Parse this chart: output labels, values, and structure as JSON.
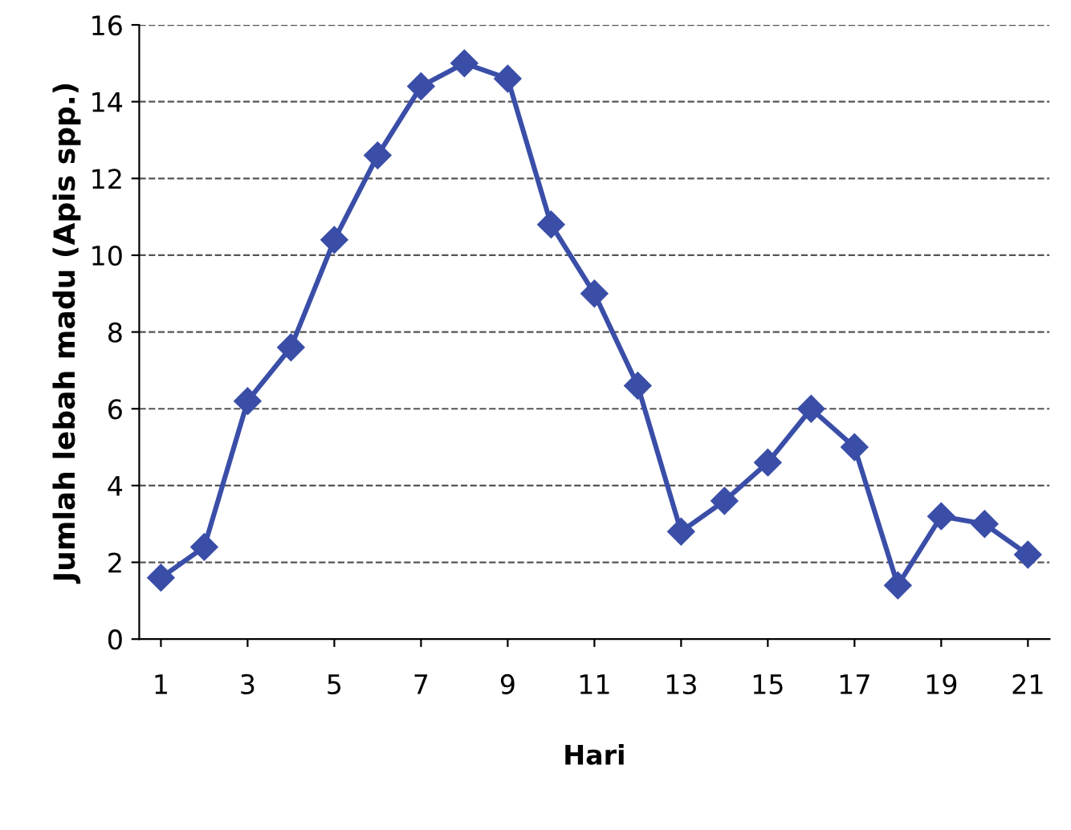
{
  "chart_data": {
    "type": "line",
    "xlabel": "Hari",
    "ylabel": "Jumlah lebah madu (Apis spp.)",
    "x": [
      1,
      2,
      3,
      4,
      5,
      6,
      7,
      8,
      9,
      10,
      11,
      12,
      13,
      14,
      15,
      16,
      17,
      18,
      19,
      20,
      21
    ],
    "series": [
      {
        "color": "#3a4ea8",
        "values": [
          1.6,
          2.4,
          6.2,
          7.6,
          10.4,
          12.6,
          14.4,
          15.0,
          14.6,
          10.8,
          9.0,
          6.6,
          2.8,
          3.6,
          4.6,
          6.0,
          5.0,
          1.4,
          3.2,
          3.0,
          2.2
        ]
      }
    ],
    "xlim": [
      0.5,
      21.5
    ],
    "xticks": [
      1,
      3,
      5,
      7,
      9,
      11,
      13,
      15,
      17,
      19,
      21
    ],
    "ylim": [
      0,
      16
    ],
    "yticks": [
      0,
      2,
      4,
      6,
      8,
      10,
      12,
      14,
      16
    ],
    "grid": "y",
    "marker": "diamond",
    "line_style": "solid",
    "legend": false
  }
}
